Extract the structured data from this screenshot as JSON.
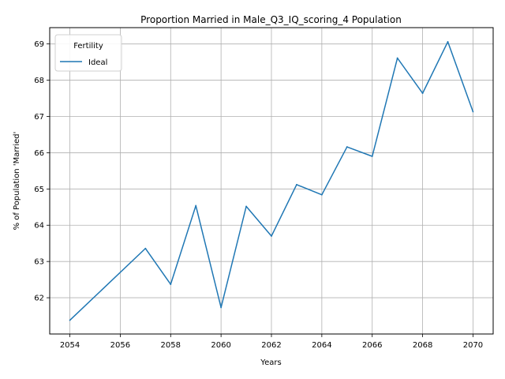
{
  "chart_data": {
    "type": "line",
    "title": "Proportion Married in Male_Q3_IQ_scoring_4 Population",
    "xlabel": "Years",
    "ylabel": "% of Population 'Married'",
    "xlim": [
      2053.2,
      2070.8
    ],
    "ylim": [
      61.0,
      69.45
    ],
    "x_ticks": [
      2054,
      2056,
      2058,
      2060,
      2062,
      2064,
      2066,
      2068,
      2070
    ],
    "y_ticks": [
      62,
      63,
      64,
      65,
      66,
      67,
      68,
      69
    ],
    "grid": true,
    "legend": {
      "title": "Fertility",
      "placement": "top-left"
    },
    "series": [
      {
        "name": "Ideal",
        "color": "#1f77b4",
        "x": [
          2054,
          2057,
          2058,
          2059,
          2060,
          2061,
          2062,
          2063,
          2064,
          2065,
          2066,
          2067,
          2068,
          2069,
          2070
        ],
        "values": [
          61.38,
          63.36,
          62.37,
          64.54,
          61.73,
          64.52,
          63.7,
          65.12,
          64.84,
          66.16,
          65.9,
          68.61,
          67.64,
          69.06,
          67.13
        ]
      }
    ]
  }
}
